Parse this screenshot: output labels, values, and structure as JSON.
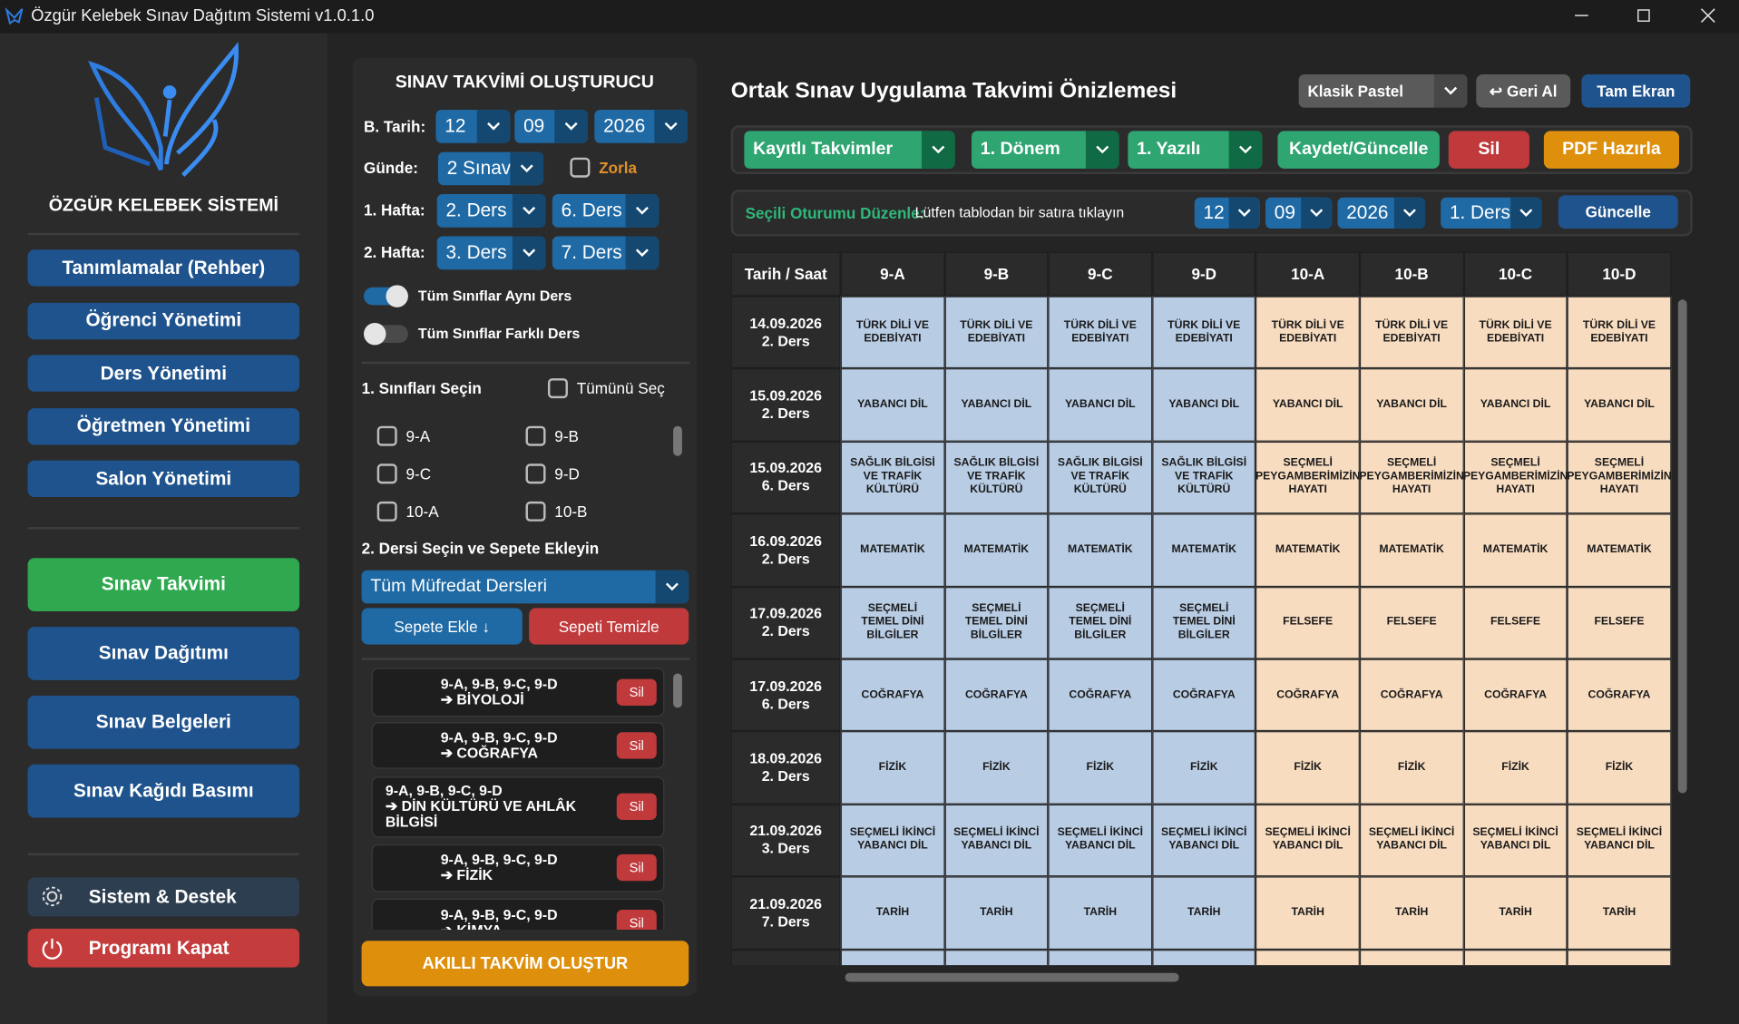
{
  "window": {
    "title": "Özgür Kelebek Sınav Dağıtım Sistemi v1.0.1.0"
  },
  "sidebar": {
    "brand": "ÖZGÜR KELEBEK SİSTEMİ",
    "menu": [
      "Tanımlamalar (Rehber)",
      "Öğrenci Yönetimi",
      "Ders Yönetimi",
      "Öğretmen Yönetimi",
      "Salon Yönetimi"
    ],
    "modules": [
      "Sınav Takvimi",
      "Sınav Dağıtımı",
      "Sınav Belgeleri",
      "Sınav Kağıdı Basımı"
    ],
    "support": "Sistem & Destek",
    "exit": "Programı Kapat"
  },
  "builder": {
    "title": "SINAV TAKVİMİ OLUŞTURUCU",
    "start_label": "B. Tarih:",
    "start_day": "12",
    "start_month": "09",
    "start_year": "2026",
    "per_day_label": "Günde:",
    "per_day": "2 Sınav",
    "force": "Zorla",
    "week1_label": "1. Hafta:",
    "week1": [
      "2. Ders",
      "6. Ders"
    ],
    "week2_label": "2. Hafta:",
    "week2": [
      "3. Ders",
      "7. Ders"
    ],
    "same_toggle": "Tüm Sınıflar Aynı Ders",
    "diff_toggle": "Tüm Sınıflar Farklı Ders",
    "step1": "1. Sınıfları Seçin",
    "select_all": "Tümünü Seç",
    "classes": [
      "9-A",
      "9-B",
      "9-C",
      "9-D",
      "10-A",
      "10-B"
    ],
    "step2": "2. Dersi Seçin ve Sepete Ekleyin",
    "curriculum": "Tüm Müfredat Dersleri",
    "add": "Sepete Ekle ↓",
    "clear": "Sepeti Temizle",
    "delete": "Sil",
    "basket": [
      {
        "classes": "9-A, 9-B, 9-C, 9-D",
        "lesson": "➔ BİYOLOJİ"
      },
      {
        "classes": "9-A, 9-B, 9-C, 9-D",
        "lesson": "➔ COĞRAFYA"
      },
      {
        "classes": "9-A, 9-B, 9-C, 9-D",
        "lesson": "➔ DİN KÜLTÜRÜ VE AHLÂK BİLGİSİ"
      },
      {
        "classes": "9-A, 9-B, 9-C, 9-D",
        "lesson": "➔ FİZİK"
      },
      {
        "classes": "9-A, 9-B, 9-C, 9-D",
        "lesson": "➔ KİMYA"
      }
    ],
    "generate": "AKILLI TAKVİM OLUŞTUR"
  },
  "preview": {
    "title": "Ortak Sınav Uygulama Takvimi Önizlemesi",
    "theme": "Klasik Pastel",
    "undo": "↩ Geri Al",
    "fullscreen": "Tam Ekran",
    "saved": "Kayıtlı Takvimler",
    "term": "1. Dönem",
    "exam": "1. Yazılı",
    "save": "Kaydet/Güncelle",
    "delete": "Sil",
    "pdf": "PDF Hazırla",
    "edit_label": "Seçili Oturumu Düzenle:",
    "edit_hint": "Lütfen tablodan bir satıra tıklayın",
    "edit_day": "12",
    "edit_month": "09",
    "edit_year": "2026",
    "edit_session": "1. Ders",
    "update": "Güncelle"
  },
  "table": {
    "headers": [
      "Tarih / Saat",
      "9-A",
      "9-B",
      "9-C",
      "9-D",
      "10-A",
      "10-B",
      "10-C",
      "10-D"
    ],
    "rows": [
      {
        "date": "14.09.2026",
        "session": "2. Ders",
        "cells": [
          "TÜRK DİLİ VE EDEBİYATI",
          "TÜRK DİLİ VE EDEBİYATI",
          "TÜRK DİLİ VE EDEBİYATI",
          "TÜRK DİLİ VE EDEBİYATI",
          "TÜRK DİLİ VE EDEBİYATI",
          "TÜRK DİLİ VE EDEBİYATI",
          "TÜRK DİLİ VE EDEBİYATI",
          "TÜRK DİLİ VE EDEBİYATI"
        ]
      },
      {
        "date": "15.09.2026",
        "session": "2. Ders",
        "cells": [
          "YABANCI DİL",
          "YABANCI DİL",
          "YABANCI DİL",
          "YABANCI DİL",
          "YABANCI DİL",
          "YABANCI DİL",
          "YABANCI DİL",
          "YABANCI DİL"
        ]
      },
      {
        "date": "15.09.2026",
        "session": "6. Ders",
        "cells": [
          "SAĞLIK BİLGİSİ VE TRAFİK KÜLTÜRÜ",
          "SAĞLIK BİLGİSİ VE TRAFİK KÜLTÜRÜ",
          "SAĞLIK BİLGİSİ VE TRAFİK KÜLTÜRÜ",
          "SAĞLIK BİLGİSİ VE TRAFİK KÜLTÜRÜ",
          "SEÇMELİ PEYGAMBERİMİZİN HAYATI",
          "SEÇMELİ PEYGAMBERİMİZİN HAYATI",
          "SEÇMELİ PEYGAMBERİMİZİN HAYATI",
          "SEÇMELİ PEYGAMBERİMİZİN HAYATI"
        ]
      },
      {
        "date": "16.09.2026",
        "session": "2. Ders",
        "cells": [
          "MATEMATİK",
          "MATEMATİK",
          "MATEMATİK",
          "MATEMATİK",
          "MATEMATİK",
          "MATEMATİK",
          "MATEMATİK",
          "MATEMATİK"
        ]
      },
      {
        "date": "17.09.2026",
        "session": "2. Ders",
        "cells": [
          "SEÇMELİ TEMEL DİNİ BİLGİLER",
          "SEÇMELİ TEMEL DİNİ BİLGİLER",
          "SEÇMELİ TEMEL DİNİ BİLGİLER",
          "SEÇMELİ TEMEL DİNİ BİLGİLER",
          "FELSEFE",
          "FELSEFE",
          "FELSEFE",
          "FELSEFE"
        ]
      },
      {
        "date": "17.09.2026",
        "session": "6. Ders",
        "cells": [
          "COĞRAFYA",
          "COĞRAFYA",
          "COĞRAFYA",
          "COĞRAFYA",
          "COĞRAFYA",
          "COĞRAFYA",
          "COĞRAFYA",
          "COĞRAFYA"
        ]
      },
      {
        "date": "18.09.2026",
        "session": "2. Ders",
        "cells": [
          "FİZİK",
          "FİZİK",
          "FİZİK",
          "FİZİK",
          "FİZİK",
          "FİZİK",
          "FİZİK",
          "FİZİK"
        ]
      },
      {
        "date": "21.09.2026",
        "session": "3. Ders",
        "cells": [
          "SEÇMELİ İKİNCİ YABANCI DİL",
          "SEÇMELİ İKİNCİ YABANCI DİL",
          "SEÇMELİ İKİNCİ YABANCI DİL",
          "SEÇMELİ İKİNCİ YABANCI DİL",
          "SEÇMELİ İKİNCİ YABANCI DİL",
          "SEÇMELİ İKİNCİ YABANCI DİL",
          "SEÇMELİ İKİNCİ YABANCI DİL",
          "SEÇMELİ İKİNCİ YABANCI DİL"
        ]
      },
      {
        "date": "21.09.2026",
        "session": "7. Ders",
        "cells": [
          "TARİH",
          "TARİH",
          "TARİH",
          "TARİH",
          "TARİH",
          "TARİH",
          "TARİH",
          "TARİH"
        ]
      }
    ]
  }
}
